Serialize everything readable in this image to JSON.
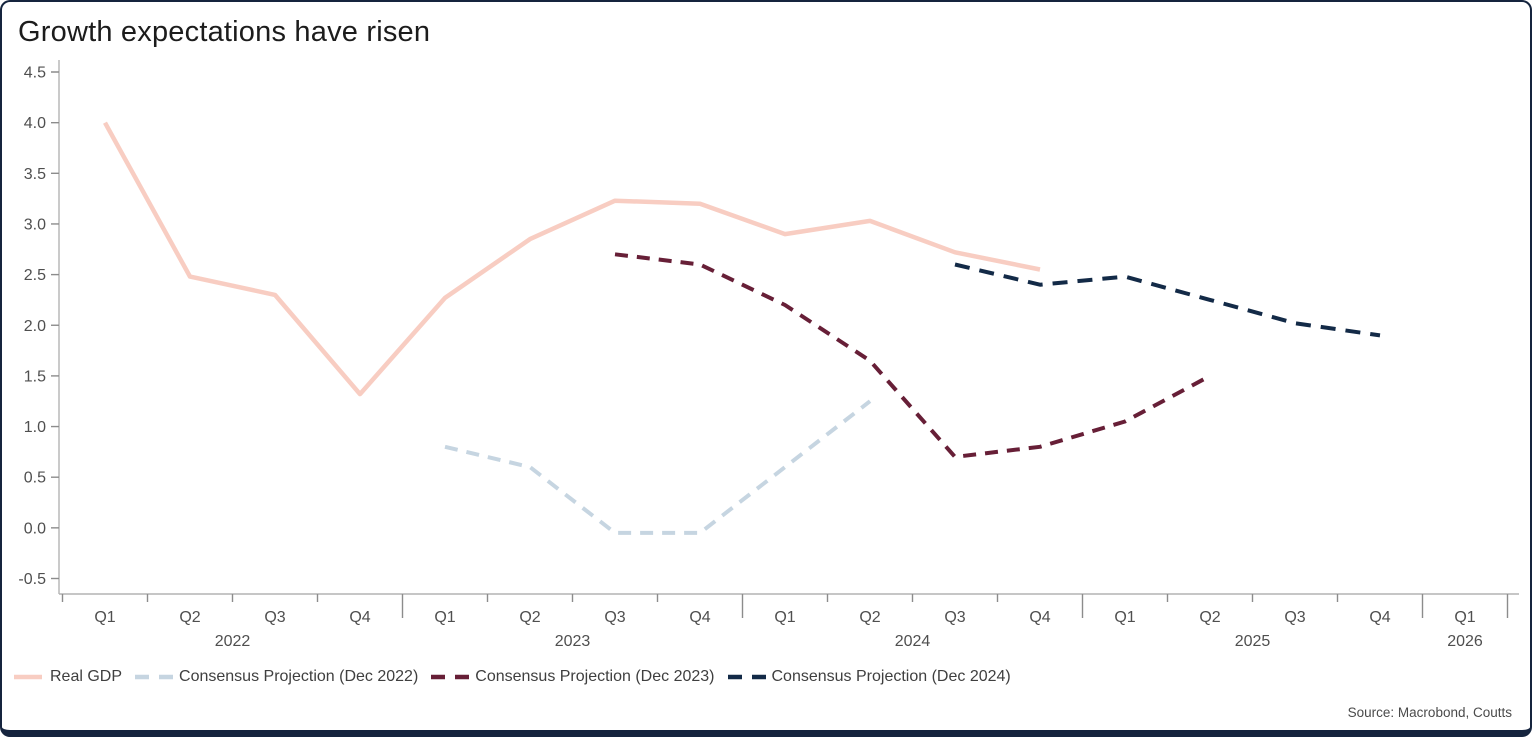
{
  "title": "Growth expectations have risen",
  "source": "Source: Macrobond, Coutts",
  "colors": {
    "real_gdp": "#f8cdc2",
    "proj_dec_2022": "#c6d5e1",
    "proj_dec_2023": "#671f37",
    "proj_dec_2024": "#132a47",
    "axis_line": "#b3b3b3",
    "axis_text": "#4f4f4f",
    "bottom_bar": "#15243e"
  },
  "chart_data": {
    "type": "line",
    "title": "Growth expectations have risen",
    "xlabel": "",
    "ylabel": "",
    "ylim": [
      -0.5,
      4.5
    ],
    "grid": false,
    "legend_position": "bottom-left",
    "y_ticks": [
      4.5,
      4.0,
      3.5,
      3.0,
      2.5,
      2.0,
      1.5,
      1.0,
      0.5,
      0.0,
      -0.5
    ],
    "x_axis": {
      "quarter_labels": [
        "Q1",
        "Q2",
        "Q3",
        "Q4",
        "Q1",
        "Q2",
        "Q3",
        "Q4",
        "Q1",
        "Q2",
        "Q3",
        "Q4",
        "Q1",
        "Q2",
        "Q3",
        "Q4",
        "Q1"
      ],
      "year_labels": [
        "2022",
        "2023",
        "2024",
        "2025",
        "2026"
      ],
      "year_label_positions": [
        1.5,
        5.5,
        9.5,
        13.5,
        16
      ],
      "year_boundary_indices": [
        3.5,
        7.5,
        11.5,
        15.5
      ]
    },
    "series": [
      {
        "name": "Real GDP",
        "color": "#f8cdc2",
        "dash": "",
        "width": 4.5,
        "start_index": 0,
        "values": [
          4.0,
          2.48,
          2.3,
          1.32,
          2.27,
          2.85,
          3.23,
          3.2,
          2.9,
          3.03,
          2.72,
          2.55
        ]
      },
      {
        "name": "Consensus Projection (Dec 2022)",
        "color": "#c6d5e1",
        "dash": "13 9",
        "width": 4,
        "start_index": 4,
        "values": [
          0.8,
          0.6,
          -0.05,
          -0.05,
          0.6,
          1.25
        ]
      },
      {
        "name": "Consensus Projection (Dec 2023)",
        "color": "#671f37",
        "dash": "13 9",
        "width": 4,
        "start_index": 6,
        "values": [
          2.7,
          2.6,
          2.2,
          1.65,
          0.7,
          0.8,
          1.05,
          1.5
        ]
      },
      {
        "name": "Consensus Projection (Dec 2024)",
        "color": "#132a47",
        "dash": "15 10",
        "width": 4,
        "start_index": 10,
        "values": [
          2.6,
          2.4,
          2.48,
          2.25,
          2.02,
          1.9
        ]
      }
    ]
  }
}
